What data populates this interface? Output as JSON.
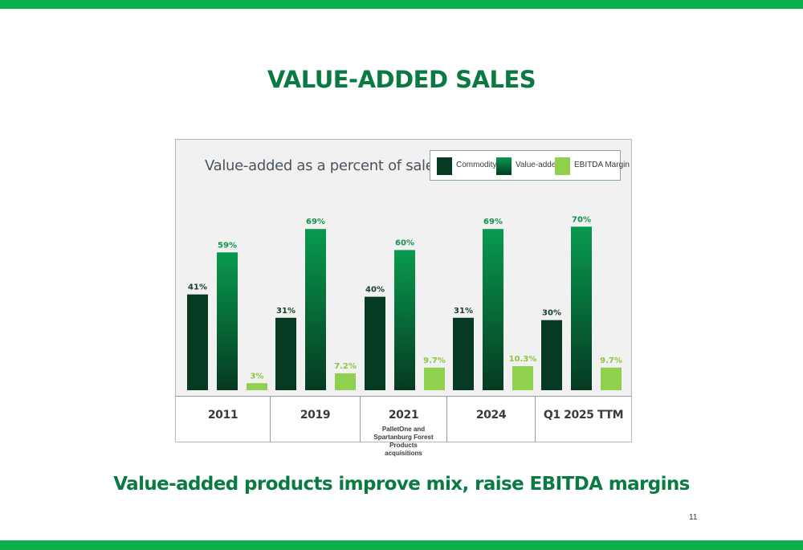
{
  "page": {
    "title": "VALUE-ADDED SALES",
    "tagline": "Value-added products improve mix, raise EBITDA margins",
    "page_number": "11"
  },
  "colors": {
    "band": "#0bb04d",
    "title": "#0a7a43",
    "commodity": "#063a22",
    "value_added_top": "#089a4e",
    "value_added_bottom": "#063a22",
    "ebitda": "#8fd14f"
  },
  "chart_data": {
    "type": "bar",
    "title": "Value-added as a percent of sales",
    "xlabel": "",
    "ylabel": "",
    "ylim": [
      0,
      75
    ],
    "grid": false,
    "legend_placement": "top-right",
    "categories": [
      "2011",
      "2019",
      "2021",
      "2024",
      "Q1 2025 TTM"
    ],
    "category_notes": [
      "",
      "",
      "PalletOne and Spartanburg Forest Products acquisitions",
      "",
      ""
    ],
    "series": [
      {
        "name": "Commodity",
        "values": [
          41,
          31,
          40,
          31,
          30
        ],
        "labels": [
          "41%",
          "31%",
          "40%",
          "31%",
          "30%"
        ]
      },
      {
        "name": "Value-added",
        "values": [
          59,
          69,
          60,
          69,
          70
        ],
        "labels": [
          "59%",
          "69%",
          "60%",
          "69%",
          "70%"
        ]
      },
      {
        "name": "EBITDA Margin",
        "values": [
          3,
          7.2,
          9.7,
          10.3,
          9.7
        ],
        "labels": [
          "3%",
          "7.2%",
          "9.7%",
          "10.3%",
          "9.7%"
        ]
      }
    ]
  }
}
